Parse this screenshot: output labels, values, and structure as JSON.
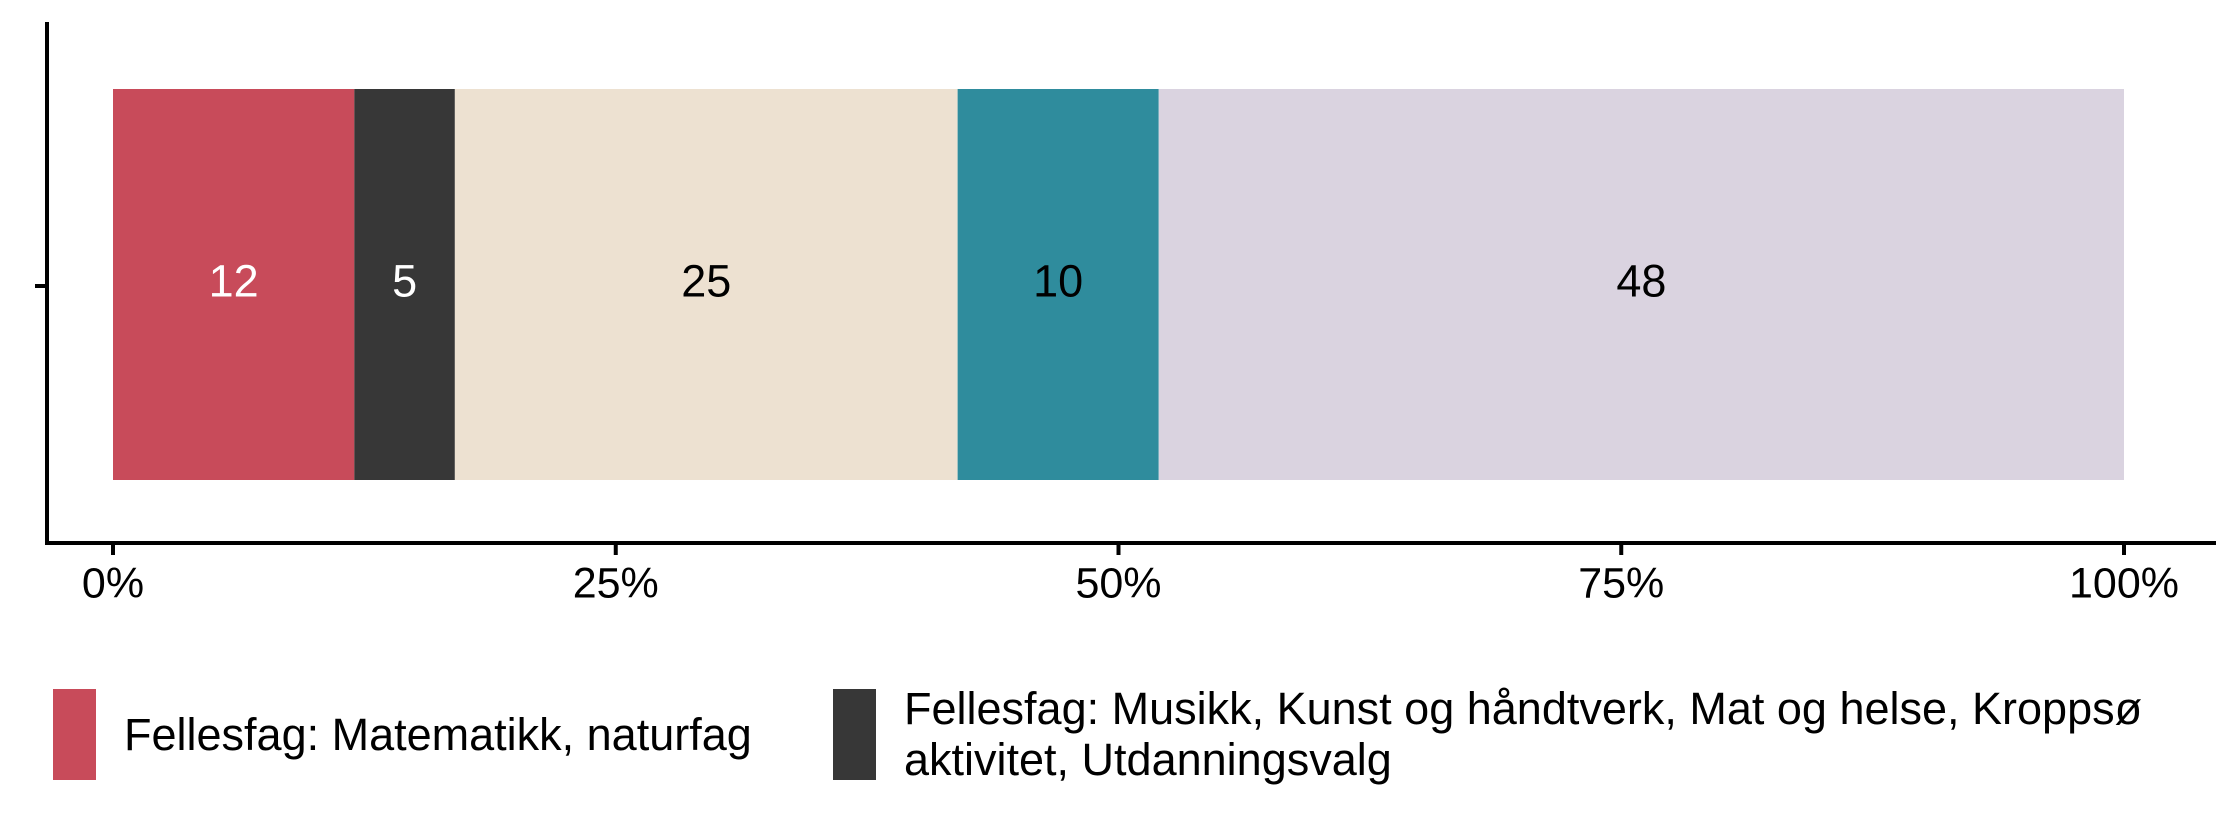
{
  "chart_data": {
    "type": "stacked-bar",
    "orientation": "horizontal",
    "categories": [
      null
    ],
    "series": [
      {
        "name": "Fellesfag: Matematikk, naturfag",
        "color": "#c84b5a",
        "label_color": "#ffffff",
        "values": [
          12
        ]
      },
      {
        "name": "Fellesfag: Musikk, Kunst og håndtverk, Mat og helse, Kroppsø aktivitet, Utdanningsvalg",
        "color": "#373737",
        "label_color": "#ffffff",
        "values": [
          5
        ]
      },
      {
        "color": "#ede1d1",
        "label_color": "#000000",
        "values": [
          25
        ]
      },
      {
        "color": "#2f8c9d",
        "label_color": "#000000",
        "values": [
          10
        ]
      },
      {
        "color": "#dad3e0",
        "label_color": "#000000",
        "values": [
          48
        ]
      }
    ],
    "xlim": [
      0,
      100
    ],
    "xticks": [
      {
        "value": 0,
        "label": "0%"
      },
      {
        "value": 25,
        "label": "25%"
      },
      {
        "value": 50,
        "label": "50%"
      },
      {
        "value": 75,
        "label": "75%"
      },
      {
        "value": 100,
        "label": "100%"
      }
    ],
    "grid": false
  }
}
